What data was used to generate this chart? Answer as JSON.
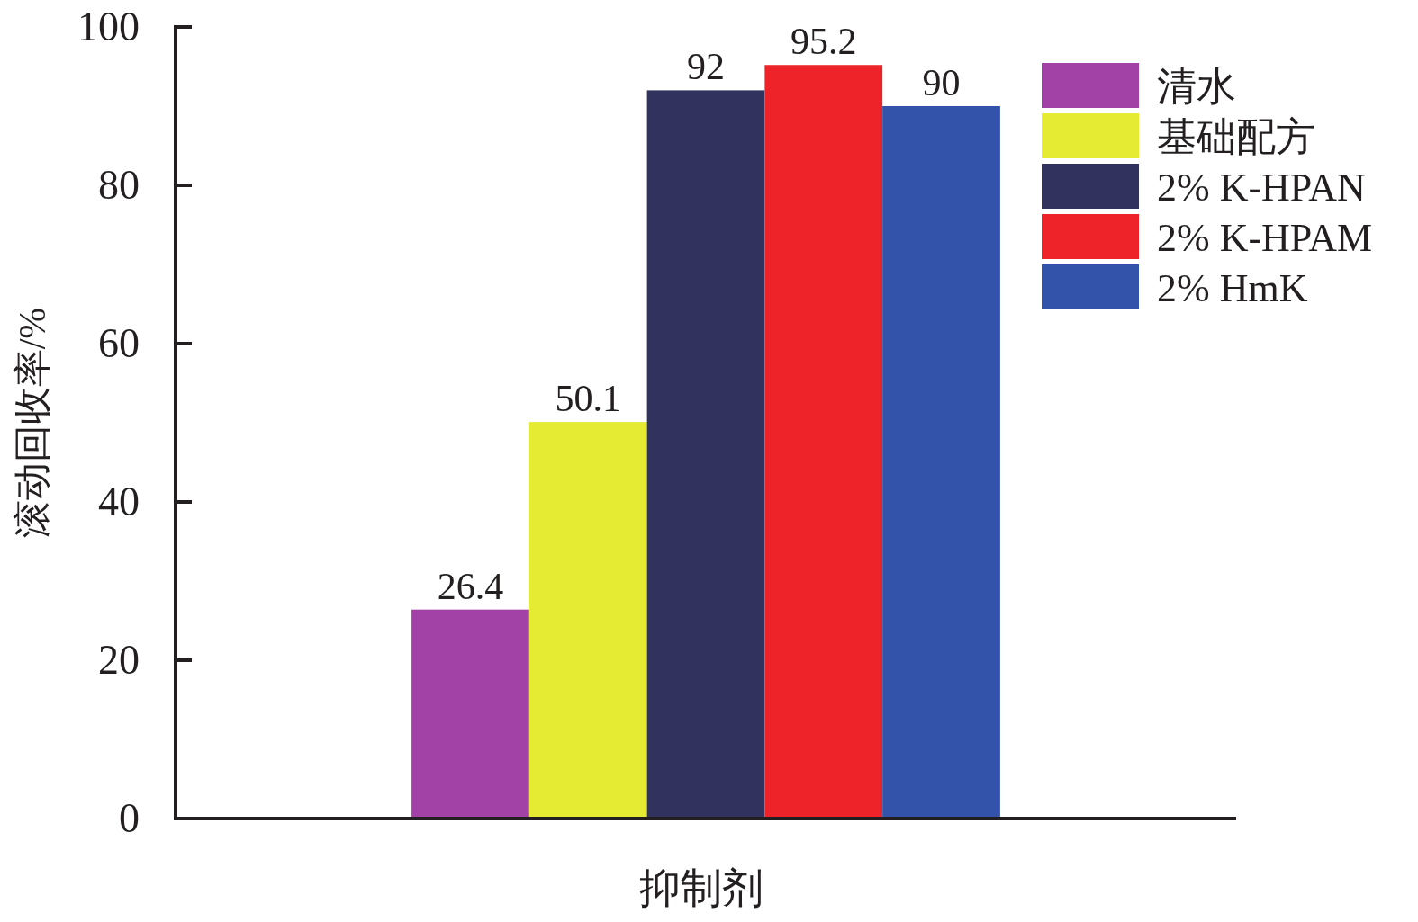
{
  "chart_data": {
    "type": "bar",
    "ylabel": "滚动回收率/%",
    "xlabel": "抑制剂",
    "categories": [
      null
    ],
    "ylim": [
      0,
      100
    ],
    "yticks": [
      0,
      20,
      40,
      60,
      80,
      100
    ],
    "grid": false,
    "legend": "top right",
    "data_labels": true,
    "series": [
      {
        "name": "清水",
        "color": "#a342a6",
        "values": [
          26.4
        ]
      },
      {
        "name": "基础配方",
        "color": "#e5eb33",
        "values": [
          50.1
        ]
      },
      {
        "name": "2% K-HPAN",
        "color": "#31325e",
        "values": [
          92
        ]
      },
      {
        "name": "2% K-HPAM",
        "color": "#ee2229",
        "values": [
          95.2
        ]
      },
      {
        "name": "2% HmK",
        "color": "#3352aa",
        "values": [
          90
        ]
      }
    ]
  }
}
